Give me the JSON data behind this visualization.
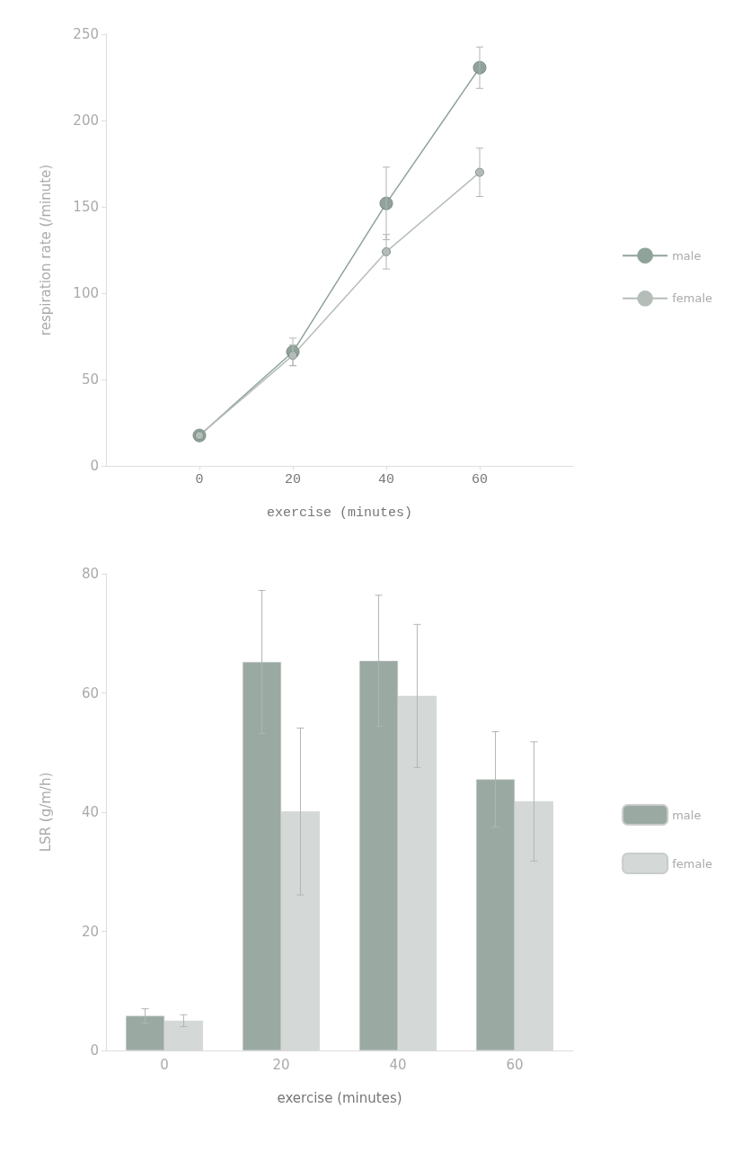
{
  "chart_data": [
    {
      "type": "line",
      "xlabel": "exercise (minutes)",
      "ylabel": "respiration rate (/minute)",
      "x": [
        0,
        20,
        40,
        60
      ],
      "xlim": [
        -20,
        80
      ],
      "xticks": [
        0,
        20,
        40,
        60
      ],
      "ylim": [
        0,
        250
      ],
      "yticks": [
        0,
        50,
        100,
        150,
        200,
        250
      ],
      "marker": "circle",
      "grid": false,
      "legend": "right",
      "series": [
        {
          "name": "male",
          "color": "#8fa39a",
          "values": [
            17.6,
            66,
            152,
            230.6
          ],
          "errors": [
            null,
            8,
            21,
            12
          ]
        },
        {
          "name": "female",
          "color": "#b5bdb9",
          "values": [
            17.6,
            64,
            124,
            170
          ],
          "errors": [
            null,
            6,
            10,
            14
          ]
        }
      ]
    },
    {
      "type": "bar",
      "xlabel": "exercise (minutes)",
      "ylabel": "LSR (g/m/h)",
      "categories": [
        "0",
        "20",
        "40",
        "60"
      ],
      "ylim": [
        0,
        80
      ],
      "yticks": [
        0,
        20,
        40,
        60,
        80
      ],
      "grid": false,
      "legend": "right",
      "series": [
        {
          "name": "male",
          "color": "#9aaaa2",
          "values": [
            5.8,
            65.2,
            65.4,
            45.5
          ],
          "errors": [
            1.2,
            12,
            11,
            8
          ]
        },
        {
          "name": "female",
          "color": "#d4d8d6",
          "values": [
            5,
            40.1,
            59.5,
            41.8
          ],
          "errors": [
            1,
            14,
            12,
            10
          ]
        }
      ]
    }
  ]
}
